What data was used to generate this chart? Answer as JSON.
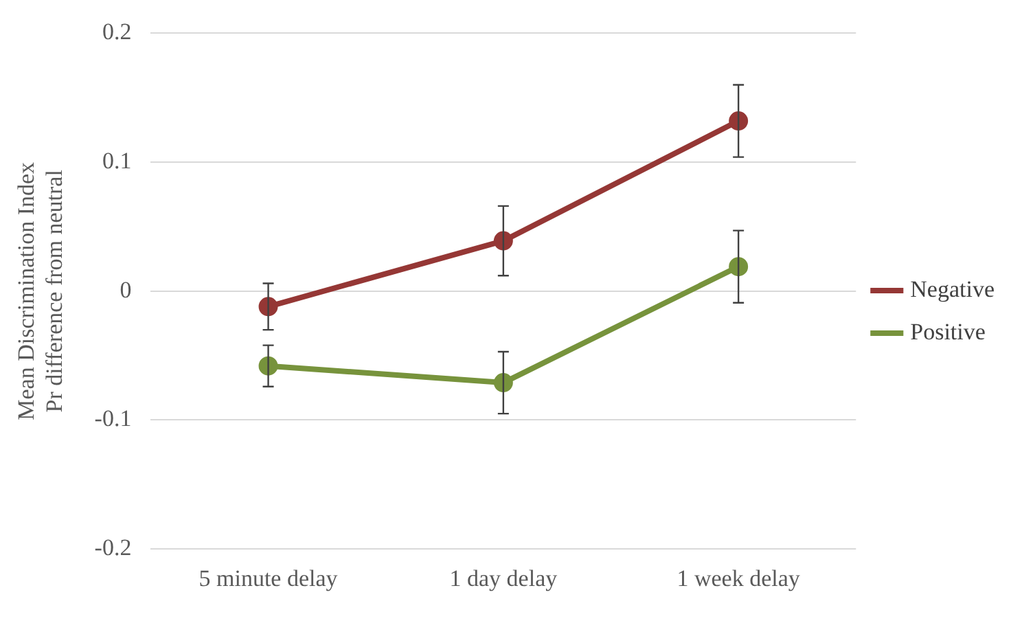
{
  "chart_data": {
    "type": "line",
    "ylabel": "Mean Discrimination Index Pr difference from neutral",
    "categories": [
      "5 minute delay",
      "1 day delay",
      "1 week delay"
    ],
    "series": [
      {
        "name": "Negative",
        "color": "#953735",
        "values": [
          -0.012,
          0.039,
          0.132
        ],
        "errors": [
          0.018,
          0.027,
          0.028
        ]
      },
      {
        "name": "Positive",
        "color": "#77933c",
        "values": [
          -0.058,
          -0.071,
          0.019
        ],
        "errors": [
          0.016,
          0.024,
          0.028
        ]
      }
    ],
    "ylim": [
      -0.2,
      0.2
    ],
    "yticks": [
      -0.2,
      -0.1,
      0,
      0.1,
      0.2
    ],
    "grid": "y",
    "legend": "right",
    "marker": "circle",
    "line_style": "solid"
  }
}
